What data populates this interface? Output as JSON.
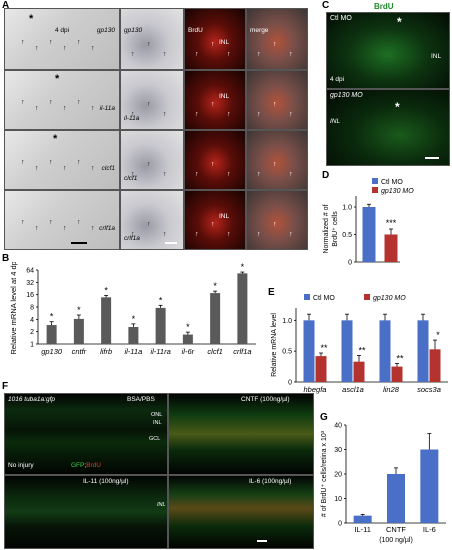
{
  "panel_labels": {
    "A": "A",
    "B": "B",
    "C": "C",
    "D": "D",
    "E": "E",
    "F": "F",
    "G": "G"
  },
  "panel_a": {
    "rows": [
      {
        "marker": "gp130",
        "marker2": "gp130",
        "dpi": "4 dpi"
      },
      {
        "marker": "il-11a",
        "marker2": "il-11a"
      },
      {
        "marker": "clcf1",
        "marker2": "clcf1"
      },
      {
        "marker": "crlf1a",
        "marker2": "crlf1a"
      }
    ],
    "col_labels": {
      "brdu": "BrdU",
      "merge": "merge"
    },
    "inl": "INL",
    "star": "*"
  },
  "panel_c": {
    "title": "BrdU",
    "ctl": "Ctl MO",
    "gp130": "gp130 MO",
    "dpi": "4 dpi",
    "inl": "INL",
    "star": "*"
  },
  "panel_f": {
    "line": "1016 tuba1a:gfp",
    "bsa": "BSA/PBS",
    "cntf": "CNTF (100ng/µl)",
    "il11": "IL-11 (100ng/µl)",
    "il6": "IL-6 (100ng/µl)",
    "no_injury": "No injury",
    "gfp": "GFP",
    "brdu": "BrdU",
    "onl": "ONL",
    "inl": "INL",
    "gcl": "GCL"
  },
  "chart_data": [
    {
      "id": "B",
      "type": "bar",
      "ylabel": "Relative mRNA level at 4 dpi",
      "yscale": "log2",
      "yticks": [
        1,
        2,
        4,
        8,
        16,
        32,
        64
      ],
      "ylim": [
        1,
        64
      ],
      "categories": [
        "gp130",
        "cntfr",
        "lifrb",
        "il-11a",
        "il-11ra",
        "il-6r",
        "clcf1",
        "crlf1a"
      ],
      "values": [
        2.9,
        4.1,
        13.8,
        2.6,
        7.6,
        1.7,
        17.5,
        53
      ],
      "errors": [
        0.6,
        1.0,
        1.5,
        0.5,
        1.2,
        0.25,
        2.0,
        4
      ],
      "significance": [
        "*",
        "*",
        "*",
        "*",
        "*",
        "*",
        "*",
        "*"
      ],
      "color": "#5a5a5a"
    },
    {
      "id": "D",
      "type": "bar",
      "ylabel": "Normalized # of BrdU⁺ cells",
      "yticks": [
        "0",
        "0.5",
        "1.0"
      ],
      "ylim": [
        0,
        1.2
      ],
      "categories": [
        "Ctl MO",
        "gp130 MO"
      ],
      "values": [
        1.0,
        0.5
      ],
      "errors": [
        0.05,
        0.1
      ],
      "significance": "***",
      "legend": [
        "Ctl MO",
        "gp130 MO"
      ],
      "colors": [
        "#4a6fc7",
        "#b5332e"
      ]
    },
    {
      "id": "E",
      "type": "bar",
      "ylabel": "Relative mRNA level",
      "yticks": [
        "0",
        "0.5",
        "1.0"
      ],
      "ylim": [
        0,
        1.2
      ],
      "categories": [
        "hbegfa",
        "ascl1a",
        "lin28",
        "socs3a"
      ],
      "series": [
        {
          "name": "Ctl MO",
          "values": [
            1.0,
            1.0,
            1.0,
            1.0
          ],
          "errors": [
            0.1,
            0.1,
            0.1,
            0.1
          ]
        },
        {
          "name": "gp130 MO",
          "values": [
            0.42,
            0.33,
            0.25,
            0.53
          ],
          "errors": [
            0.05,
            0.1,
            0.05,
            0.15
          ]
        }
      ],
      "significance": [
        "**",
        "**",
        "**",
        "*"
      ],
      "colors": [
        "#4a6fc7",
        "#b5332e"
      ]
    },
    {
      "id": "G",
      "type": "bar",
      "ylabel": "# of BrdU⁺ cells/retina x 10³",
      "yticks": [
        "0",
        "10",
        "20",
        "30",
        "40"
      ],
      "ylim": [
        0,
        40
      ],
      "categories": [
        "IL-11",
        "CNTF",
        "IL-6"
      ],
      "values": [
        3,
        20,
        30
      ],
      "errors": [
        0.5,
        2.5,
        6.5
      ],
      "xnote": "(100 ng/µl)",
      "color": "#4a6fc7"
    }
  ]
}
